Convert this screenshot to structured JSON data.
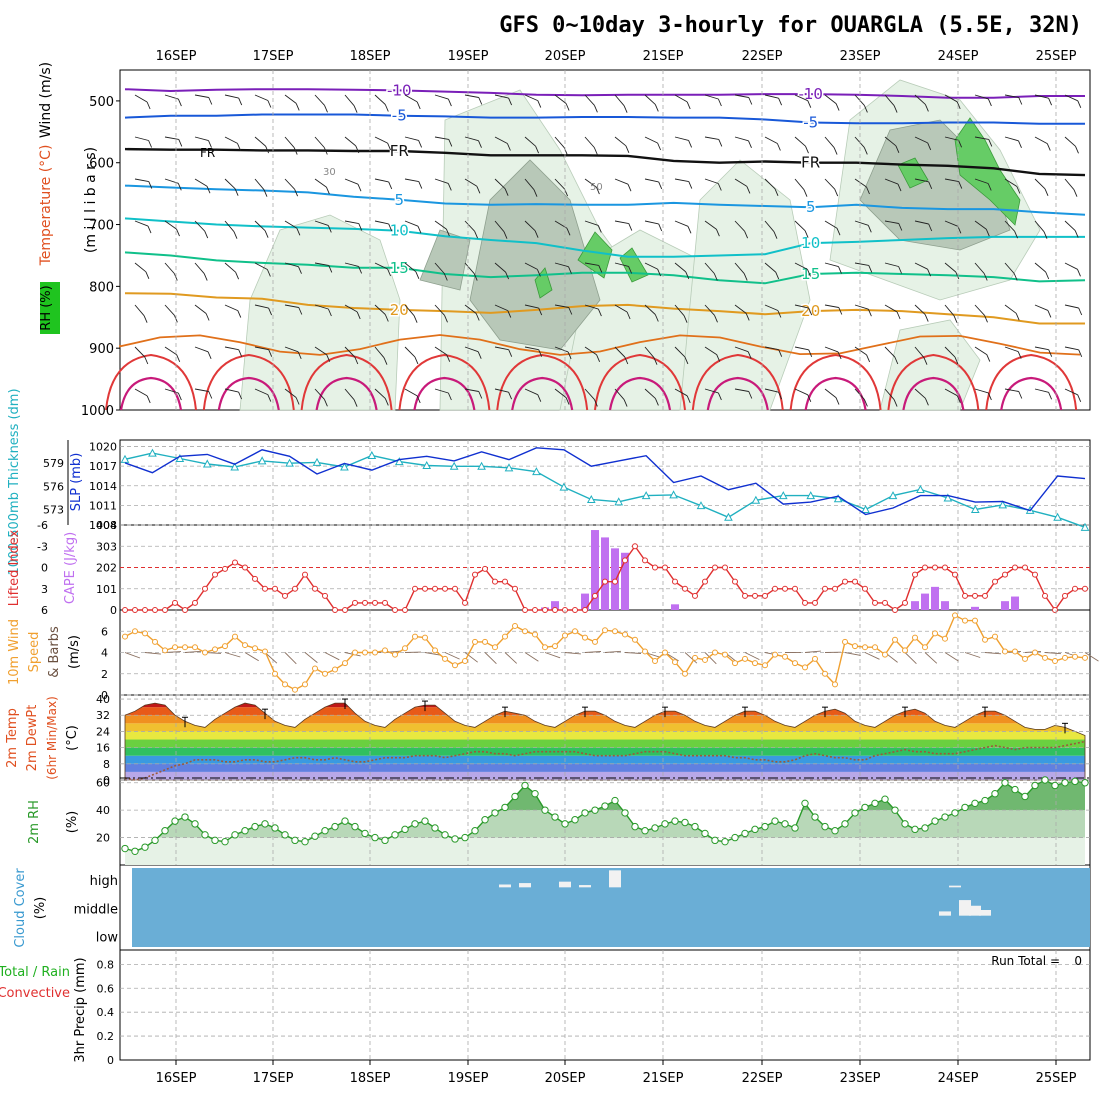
{
  "title": "GFS 0~10day 3-hourly for OUARGLA (5.5E, 32N)",
  "colors": {
    "rh_band": "#1fc41f",
    "temp_label": "#e05020",
    "temp_label_blue": "#3030c0",
    "thickness": "#20b0c0",
    "slp": "#1030d0",
    "lifted": "#e03030",
    "cape": "#c070f0",
    "wind_speed": "#f0a030",
    "wind_barb": "#8a7060",
    "rh2m": "#2a9a2a",
    "cloud_bg": "#6aaed6",
    "precip_total": "#20b020",
    "precip_conv": "#e03030"
  },
  "chart_data": [
    {
      "id": "upper_air",
      "type": "contour",
      "ylabel_parts": {
        "rh": "RH (%)",
        "temp": "Temperature (°C)",
        "wind": "Wind (m/s)",
        "units": "(m i l l i b a r s)"
      },
      "x_dates": [
        "16SEP",
        "17SEP",
        "18SEP",
        "19SEP",
        "20SEP",
        "21SEP",
        "22SEP",
        "23SEP",
        "24SEP",
        "25SEP"
      ],
      "yticks": [
        500,
        600,
        700,
        800,
        900,
        1000
      ],
      "ylim": [
        450,
        1000
      ],
      "isotherms": [
        {
          "label": "-10",
          "color": "#7a1fb8",
          "values": [
            481,
            484,
            482,
            481,
            481,
            482,
            483,
            485,
            487,
            490,
            491,
            490,
            490,
            490,
            489,
            489,
            490,
            492,
            495,
            495,
            492,
            492
          ]
        },
        {
          "label": "-5",
          "color": "#1858d8",
          "values": [
            527,
            524,
            524,
            522,
            522,
            522,
            524,
            525,
            527,
            527,
            526,
            526,
            527,
            527,
            530,
            535,
            536,
            536,
            535,
            535,
            537,
            537
          ]
        },
        {
          "label": "FR",
          "color": "#111111",
          "values": [
            578,
            579,
            579,
            580,
            580,
            581,
            581,
            584,
            588,
            588,
            588,
            589,
            597,
            600,
            598,
            600,
            600,
            603,
            605,
            609,
            618,
            620
          ]
        },
        {
          "label": "5",
          "color": "#1a96e0",
          "values": [
            637,
            640,
            643,
            645,
            648,
            655,
            660,
            666,
            668,
            667,
            668,
            668,
            665,
            668,
            670,
            672,
            668,
            673,
            675,
            675,
            680,
            684
          ]
        },
        {
          "label": "10",
          "color": "#10c0c8",
          "values": [
            690,
            695,
            700,
            703,
            705,
            707,
            710,
            719,
            725,
            730,
            742,
            752,
            752,
            750,
            748,
            730,
            728,
            725,
            722,
            720,
            720,
            720
          ]
        },
        {
          "label": "15",
          "color": "#10c08a",
          "values": [
            745,
            750,
            758,
            762,
            765,
            770,
            770,
            780,
            785,
            782,
            778,
            778,
            782,
            790,
            795,
            780,
            778,
            780,
            782,
            785,
            792,
            790
          ]
        },
        {
          "label": "20",
          "color": "#e09a20",
          "values": [
            811,
            812,
            818,
            820,
            830,
            835,
            838,
            840,
            843,
            838,
            832,
            830,
            836,
            840,
            845,
            840,
            838,
            840,
            845,
            850,
            860,
            860
          ]
        }
      ],
      "labels": {
        "fr": "FR",
        "m30": "30",
        "m50": "50"
      }
    },
    {
      "id": "slp_thickness",
      "type": "line",
      "left_label": "1000-500mb Thickness (dm)",
      "right_label": "SLP (mb)",
      "y_left_ticks": [
        "579",
        "576",
        "573"
      ],
      "y_left_range": [
        571,
        582
      ],
      "y_right_ticks": [
        "1020",
        "1017",
        "1014",
        "1011",
        "1008"
      ],
      "y_right_range": [
        1008,
        1021
      ],
      "series": [
        {
          "name": "Thickness (dm)",
          "axis": "left",
          "values": [
            579.5,
            580.3,
            579.6,
            578.9,
            578.5,
            579.3,
            579.0,
            579.1,
            578.5,
            580.0,
            579.2,
            578.7,
            578.6,
            578.6,
            578.4,
            577.9,
            575.9,
            574.3,
            574.0,
            574.8,
            574.9,
            573.5,
            572.0,
            574.2,
            574.8,
            574.8,
            574.4,
            573.0,
            574.8,
            575.6,
            574.5,
            573.0,
            573.6,
            572.9,
            572.0,
            570.7
          ]
        },
        {
          "name": "SLP (mb)",
          "axis": "right",
          "values": [
            1017.5,
            1016.0,
            1018.5,
            1018.8,
            1017.3,
            1019.5,
            1018.5,
            1015.8,
            1017.4,
            1016.4,
            1018.0,
            1018.5,
            1017.8,
            1019.2,
            1018.0,
            1019.8,
            1019.5,
            1017.0,
            1017.8,
            1018.6,
            1014.5,
            1015.5,
            1013.4,
            1014.4,
            1011.2,
            1011.5,
            1012.4,
            1009.6,
            1010.6,
            1012.5,
            1012.5,
            1011.5,
            1011.6,
            1010.2,
            1015.5,
            1015.1
          ]
        }
      ]
    },
    {
      "id": "lifted_cape",
      "type": "line+bar",
      "left_label": "Lifted Index",
      "right_label": "CAPE (J/kg)",
      "y_left_ticks": [
        "-6",
        "-3",
        "0",
        "3",
        "6"
      ],
      "y_left_range": [
        -6,
        6
      ],
      "y_right_ticks": [
        "404",
        "303",
        "202",
        "101",
        "0"
      ],
      "y_right_range": [
        0,
        404
      ],
      "lifted_index": [
        6,
        6,
        6,
        6,
        6,
        5,
        6,
        5,
        3,
        1,
        0.2,
        -0.7,
        0,
        1.6,
        3,
        3,
        4,
        3,
        1,
        3,
        4,
        6,
        6,
        5,
        5,
        5,
        5,
        6,
        6,
        3,
        3,
        3,
        3,
        3,
        5,
        1,
        0.2,
        2,
        2,
        3,
        6,
        6,
        6,
        6,
        6,
        6,
        6,
        4,
        2,
        2,
        -1,
        -3,
        -1,
        0,
        0,
        2,
        3,
        4,
        2,
        0,
        0,
        2,
        4,
        4,
        4,
        3,
        3,
        3,
        5,
        5,
        3,
        3,
        2,
        2,
        3,
        5,
        5,
        6,
        5,
        1,
        0,
        0,
        0,
        1,
        4,
        4,
        4,
        2,
        1,
        0,
        0,
        1,
        4,
        6,
        4,
        3,
        3
      ],
      "cape_bars": [
        {
          "i": 42,
          "value": 12
        },
        {
          "i": 43,
          "value": 42
        },
        {
          "i": 46,
          "value": 78
        },
        {
          "i": 47,
          "value": 380
        },
        {
          "i": 48,
          "value": 345
        },
        {
          "i": 49,
          "value": 293
        },
        {
          "i": 50,
          "value": 272
        },
        {
          "i": 55,
          "value": 27
        },
        {
          "i": 79,
          "value": 42
        },
        {
          "i": 80,
          "value": 78
        },
        {
          "i": 81,
          "value": 110
        },
        {
          "i": 82,
          "value": 42
        },
        {
          "i": 85,
          "value": 15
        },
        {
          "i": 88,
          "value": 42
        },
        {
          "i": 89,
          "value": 64
        }
      ]
    },
    {
      "id": "wind10m",
      "type": "line",
      "left_label": "10m Wind",
      "left_label_b": "Speed",
      "right_label": "& Barbs",
      "units": "(m/s)",
      "y_ticks": [
        "6",
        "4",
        "2",
        "0"
      ],
      "y_range": [
        0,
        8
      ],
      "values": [
        5.5,
        6,
        5.8,
        5,
        4.2,
        4.5,
        4.5,
        4.5,
        4,
        4.3,
        4.6,
        5.5,
        4.7,
        4.4,
        4.1,
        2,
        1,
        0.5,
        1,
        2.5,
        2,
        2.4,
        3,
        4,
        4,
        4,
        4.2,
        3.8,
        4.4,
        5.5,
        5.4,
        4.2,
        3.4,
        2.8,
        3.2,
        5,
        5,
        4.5,
        5.5,
        6.5,
        6,
        5.7,
        4.5,
        4.6,
        5.6,
        6,
        5.4,
        5,
        6.1,
        6,
        5.7,
        5.2,
        4.1,
        3.2,
        4,
        3.1,
        2,
        3.5,
        3.3,
        4,
        3.8,
        3,
        3.4,
        3,
        2.8,
        3.8,
        3.6,
        3,
        2.6,
        3.4,
        2,
        1,
        5,
        4.6,
        4.5,
        4.5,
        3.8,
        5.2,
        4.2,
        5.4,
        4.5,
        5.8,
        5.3,
        7.5,
        7,
        7,
        5.2,
        5.5,
        4.1,
        4.1,
        3.4,
        4,
        3.5,
        3.2,
        3.5,
        3.6,
        3.5
      ]
    },
    {
      "id": "temp2m",
      "type": "area",
      "left_label": "2m Temp",
      "left_label_b": "2m DewPt",
      "left_label_c": "(6hr Min/Max)",
      "units": "(°C)",
      "y_ticks": [
        "40",
        "32",
        "24",
        "16",
        "8",
        "0"
      ],
      "y_range": [
        0,
        42
      ],
      "temp": [
        32,
        34,
        37,
        38,
        37,
        32,
        29,
        27,
        26,
        30,
        33,
        36,
        38,
        37,
        33,
        29,
        27,
        26,
        30,
        33,
        36,
        38,
        38,
        33,
        29,
        27,
        26,
        30,
        33,
        36,
        37,
        37,
        33,
        29,
        27,
        26,
        29,
        32,
        34,
        33,
        32,
        29,
        27,
        26,
        29,
        32,
        34,
        34,
        32,
        29,
        27,
        26,
        29,
        32,
        34,
        34,
        32,
        29,
        27,
        26,
        29,
        32,
        34,
        34,
        32,
        29,
        27,
        26,
        29,
        32,
        34,
        35,
        33,
        29,
        27,
        26,
        29,
        32,
        34,
        35,
        33,
        29,
        27,
        26,
        29,
        32,
        34,
        34,
        32,
        29,
        26,
        25,
        25,
        27,
        26,
        24,
        22
      ],
      "dewpt": [
        1,
        0,
        1,
        3,
        5,
        7,
        8,
        10,
        10,
        10,
        9,
        9,
        10,
        10,
        9,
        9,
        10,
        11,
        11,
        10,
        10,
        11,
        10,
        9,
        9,
        10,
        11,
        11,
        11,
        12,
        12,
        12,
        11,
        12,
        13,
        14,
        14,
        13,
        13,
        12,
        13,
        14,
        14,
        14,
        14,
        14,
        13,
        12,
        12,
        12,
        12,
        13,
        14,
        14,
        14,
        13,
        12,
        12,
        12,
        12,
        12,
        11,
        11,
        10,
        10,
        9,
        9,
        10,
        12,
        13,
        12,
        11,
        11,
        10,
        10,
        12,
        13,
        14,
        15,
        14,
        14,
        13,
        13,
        13,
        14,
        15,
        16,
        17,
        16,
        15,
        16,
        16,
        16,
        16,
        17,
        18,
        19
      ]
    },
    {
      "id": "rh2m",
      "type": "area",
      "left_label": "2m RH",
      "units": "(%)",
      "y_ticks": [
        "60",
        "40",
        "20"
      ],
      "y_range": [
        0,
        62
      ],
      "values": [
        12,
        10,
        13,
        18,
        25,
        32,
        35,
        30,
        22,
        18,
        17,
        22,
        25,
        28,
        30,
        27,
        22,
        18,
        17,
        21,
        25,
        28,
        32,
        28,
        23,
        20,
        18,
        22,
        26,
        30,
        32,
        27,
        22,
        19,
        20,
        25,
        33,
        38,
        42,
        50,
        58,
        52,
        40,
        35,
        30,
        33,
        38,
        40,
        43,
        47,
        38,
        28,
        25,
        27,
        30,
        32,
        31,
        28,
        23,
        18,
        17,
        20,
        23,
        26,
        28,
        32,
        30,
        27,
        45,
        35,
        28,
        25,
        30,
        38,
        42,
        45,
        48,
        40,
        30,
        26,
        27,
        32,
        35,
        38,
        42,
        45,
        47,
        52,
        60,
        55,
        50,
        58,
        62,
        58,
        60,
        61,
        60
      ]
    },
    {
      "id": "cloud_cover",
      "type": "bar",
      "left_label": "Cloud Cover",
      "units": "(%)",
      "levels": [
        "high",
        "middle",
        "low"
      ],
      "high_bars": [
        {
          "i": 38,
          "value": 10
        },
        {
          "i": 40,
          "value": 15
        },
        {
          "i": 44,
          "value": 20
        },
        {
          "i": 46,
          "value": 8
        },
        {
          "i": 49,
          "value": 60
        },
        {
          "i": 83,
          "value": 6
        }
      ],
      "mid_bars": [
        {
          "i": 82,
          "value": 15
        },
        {
          "i": 84,
          "value": 55
        },
        {
          "i": 85,
          "value": 35
        },
        {
          "i": 86,
          "value": 20
        }
      ],
      "low_bars": []
    },
    {
      "id": "precip",
      "type": "bar",
      "left_label_a": "Total / Rain",
      "left_label_b": "Convective",
      "units_label": "3hr Precip (mm)",
      "run_total_label": "Run Total =",
      "run_total_value": "0",
      "y_ticks": [
        "0.8",
        "0.6",
        "0.4",
        "0.2",
        "0"
      ],
      "y_range": [
        0,
        0.92
      ],
      "values": []
    }
  ]
}
